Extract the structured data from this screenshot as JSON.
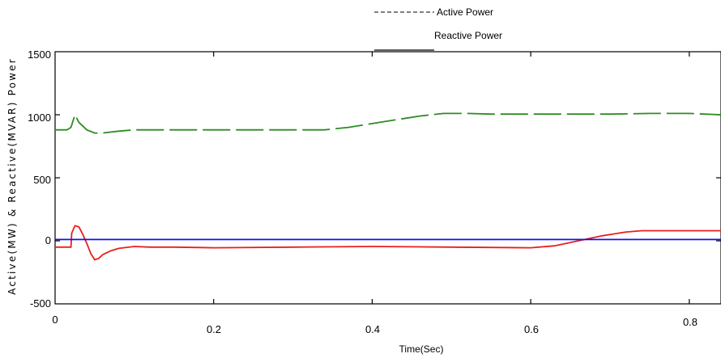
{
  "chart_data": {
    "type": "line",
    "xlabel": "Time(Sec)",
    "ylabel": "Active(MW) & Reactive(MVAR) Power",
    "xlim": [
      0,
      0.84
    ],
    "ylim": [
      -500,
      1500
    ],
    "x_ticks": [
      "0",
      "0.2",
      "0.4",
      "0.6",
      "0.8"
    ],
    "y_ticks": [
      "-500",
      "0",
      "500",
      "1000",
      "1500"
    ],
    "legend_position": "top-center",
    "legend": [
      {
        "label": "Active Power",
        "style": "dashed"
      },
      {
        "label": "Reactive Power",
        "style": "solid"
      }
    ],
    "series": [
      {
        "color": "#2e8b22",
        "dash": "dashed",
        "x": [
          0,
          0.015,
          0.02,
          0.025,
          0.03,
          0.04,
          0.05,
          0.06,
          0.08,
          0.1,
          0.12,
          0.15,
          0.18,
          0.2,
          0.25,
          0.3,
          0.34,
          0.37,
          0.4,
          0.43,
          0.46,
          0.49,
          0.52,
          0.55,
          0.6,
          0.65,
          0.7,
          0.75,
          0.8,
          0.84
        ],
        "y": [
          880,
          880,
          900,
          1000,
          940,
          880,
          855,
          855,
          870,
          880,
          880,
          880,
          880,
          880,
          880,
          880,
          880,
          900,
          930,
          960,
          990,
          1010,
          1010,
          1005,
          1005,
          1005,
          1005,
          1010,
          1010,
          1000
        ]
      },
      {
        "color": "#e8201c",
        "dash": "solid",
        "x": [
          0,
          0.02,
          0.021,
          0.025,
          0.03,
          0.035,
          0.04,
          0.045,
          0.05,
          0.055,
          0.06,
          0.07,
          0.08,
          0.1,
          0.12,
          0.15,
          0.2,
          0.3,
          0.4,
          0.5,
          0.6,
          0.63,
          0.66,
          0.69,
          0.72,
          0.74,
          0.8,
          0.84
        ],
        "y": [
          -50,
          -50,
          60,
          120,
          110,
          50,
          -20,
          -100,
          -150,
          -140,
          -110,
          -80,
          -60,
          -45,
          -50,
          -50,
          -55,
          -50,
          -45,
          -50,
          -55,
          -40,
          0,
          40,
          70,
          80,
          80,
          80
        ]
      },
      {
        "color": "#1010e8",
        "dash": "solid",
        "x": [
          0,
          0.84
        ],
        "y": [
          10,
          10
        ]
      }
    ]
  }
}
